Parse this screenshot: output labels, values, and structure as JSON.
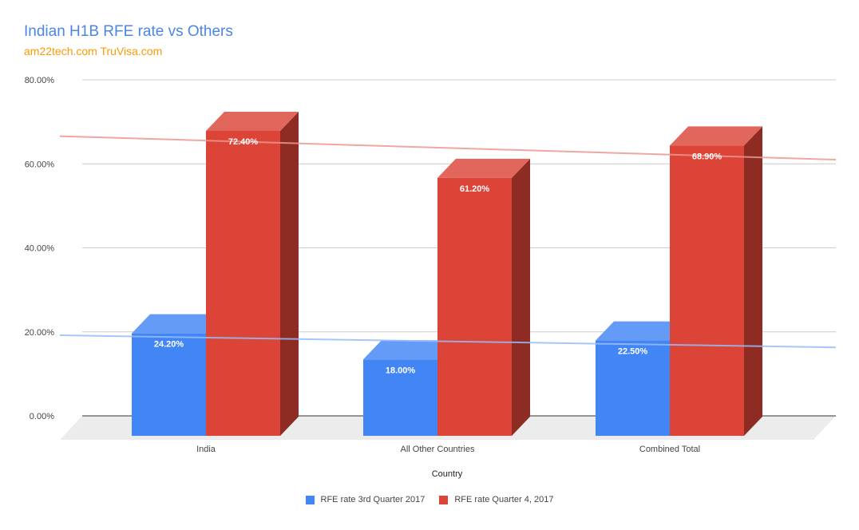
{
  "title": "Indian H1B RFE rate vs Others",
  "subtitle": "am22tech.com TruVisa.com",
  "chart_data": {
    "type": "bar",
    "title": "Indian H1B RFE rate vs Others",
    "subtitle": "am22tech.com TruVisa.com",
    "xlabel": "Country",
    "ylabel": "",
    "categories": [
      "India",
      "All Other Countries",
      "Combined Total"
    ],
    "ylim": [
      0,
      80
    ],
    "yticks": [
      "0.00%",
      "20.00%",
      "40.00%",
      "60.00%",
      "80.00%"
    ],
    "y_tick_values": [
      0,
      20,
      40,
      60,
      80
    ],
    "grid": true,
    "style": "3d",
    "legend_position": "bottom",
    "series": [
      {
        "name": "RFE rate 3rd Quarter 2017",
        "color": "#4285f4",
        "values": [
          24.2,
          18.0,
          22.5
        ],
        "labels": [
          "24.20%",
          "18.00%",
          "22.50%"
        ],
        "trendline": [
          22.8,
          19.9
        ]
      },
      {
        "name": "RFE rate Quarter 4, 2017",
        "color": "#db4437",
        "values": [
          72.4,
          61.2,
          68.9
        ],
        "labels": [
          "72.40%",
          "61.20%",
          "68.90%"
        ],
        "trendline": [
          70.2,
          64.6
        ]
      }
    ]
  }
}
